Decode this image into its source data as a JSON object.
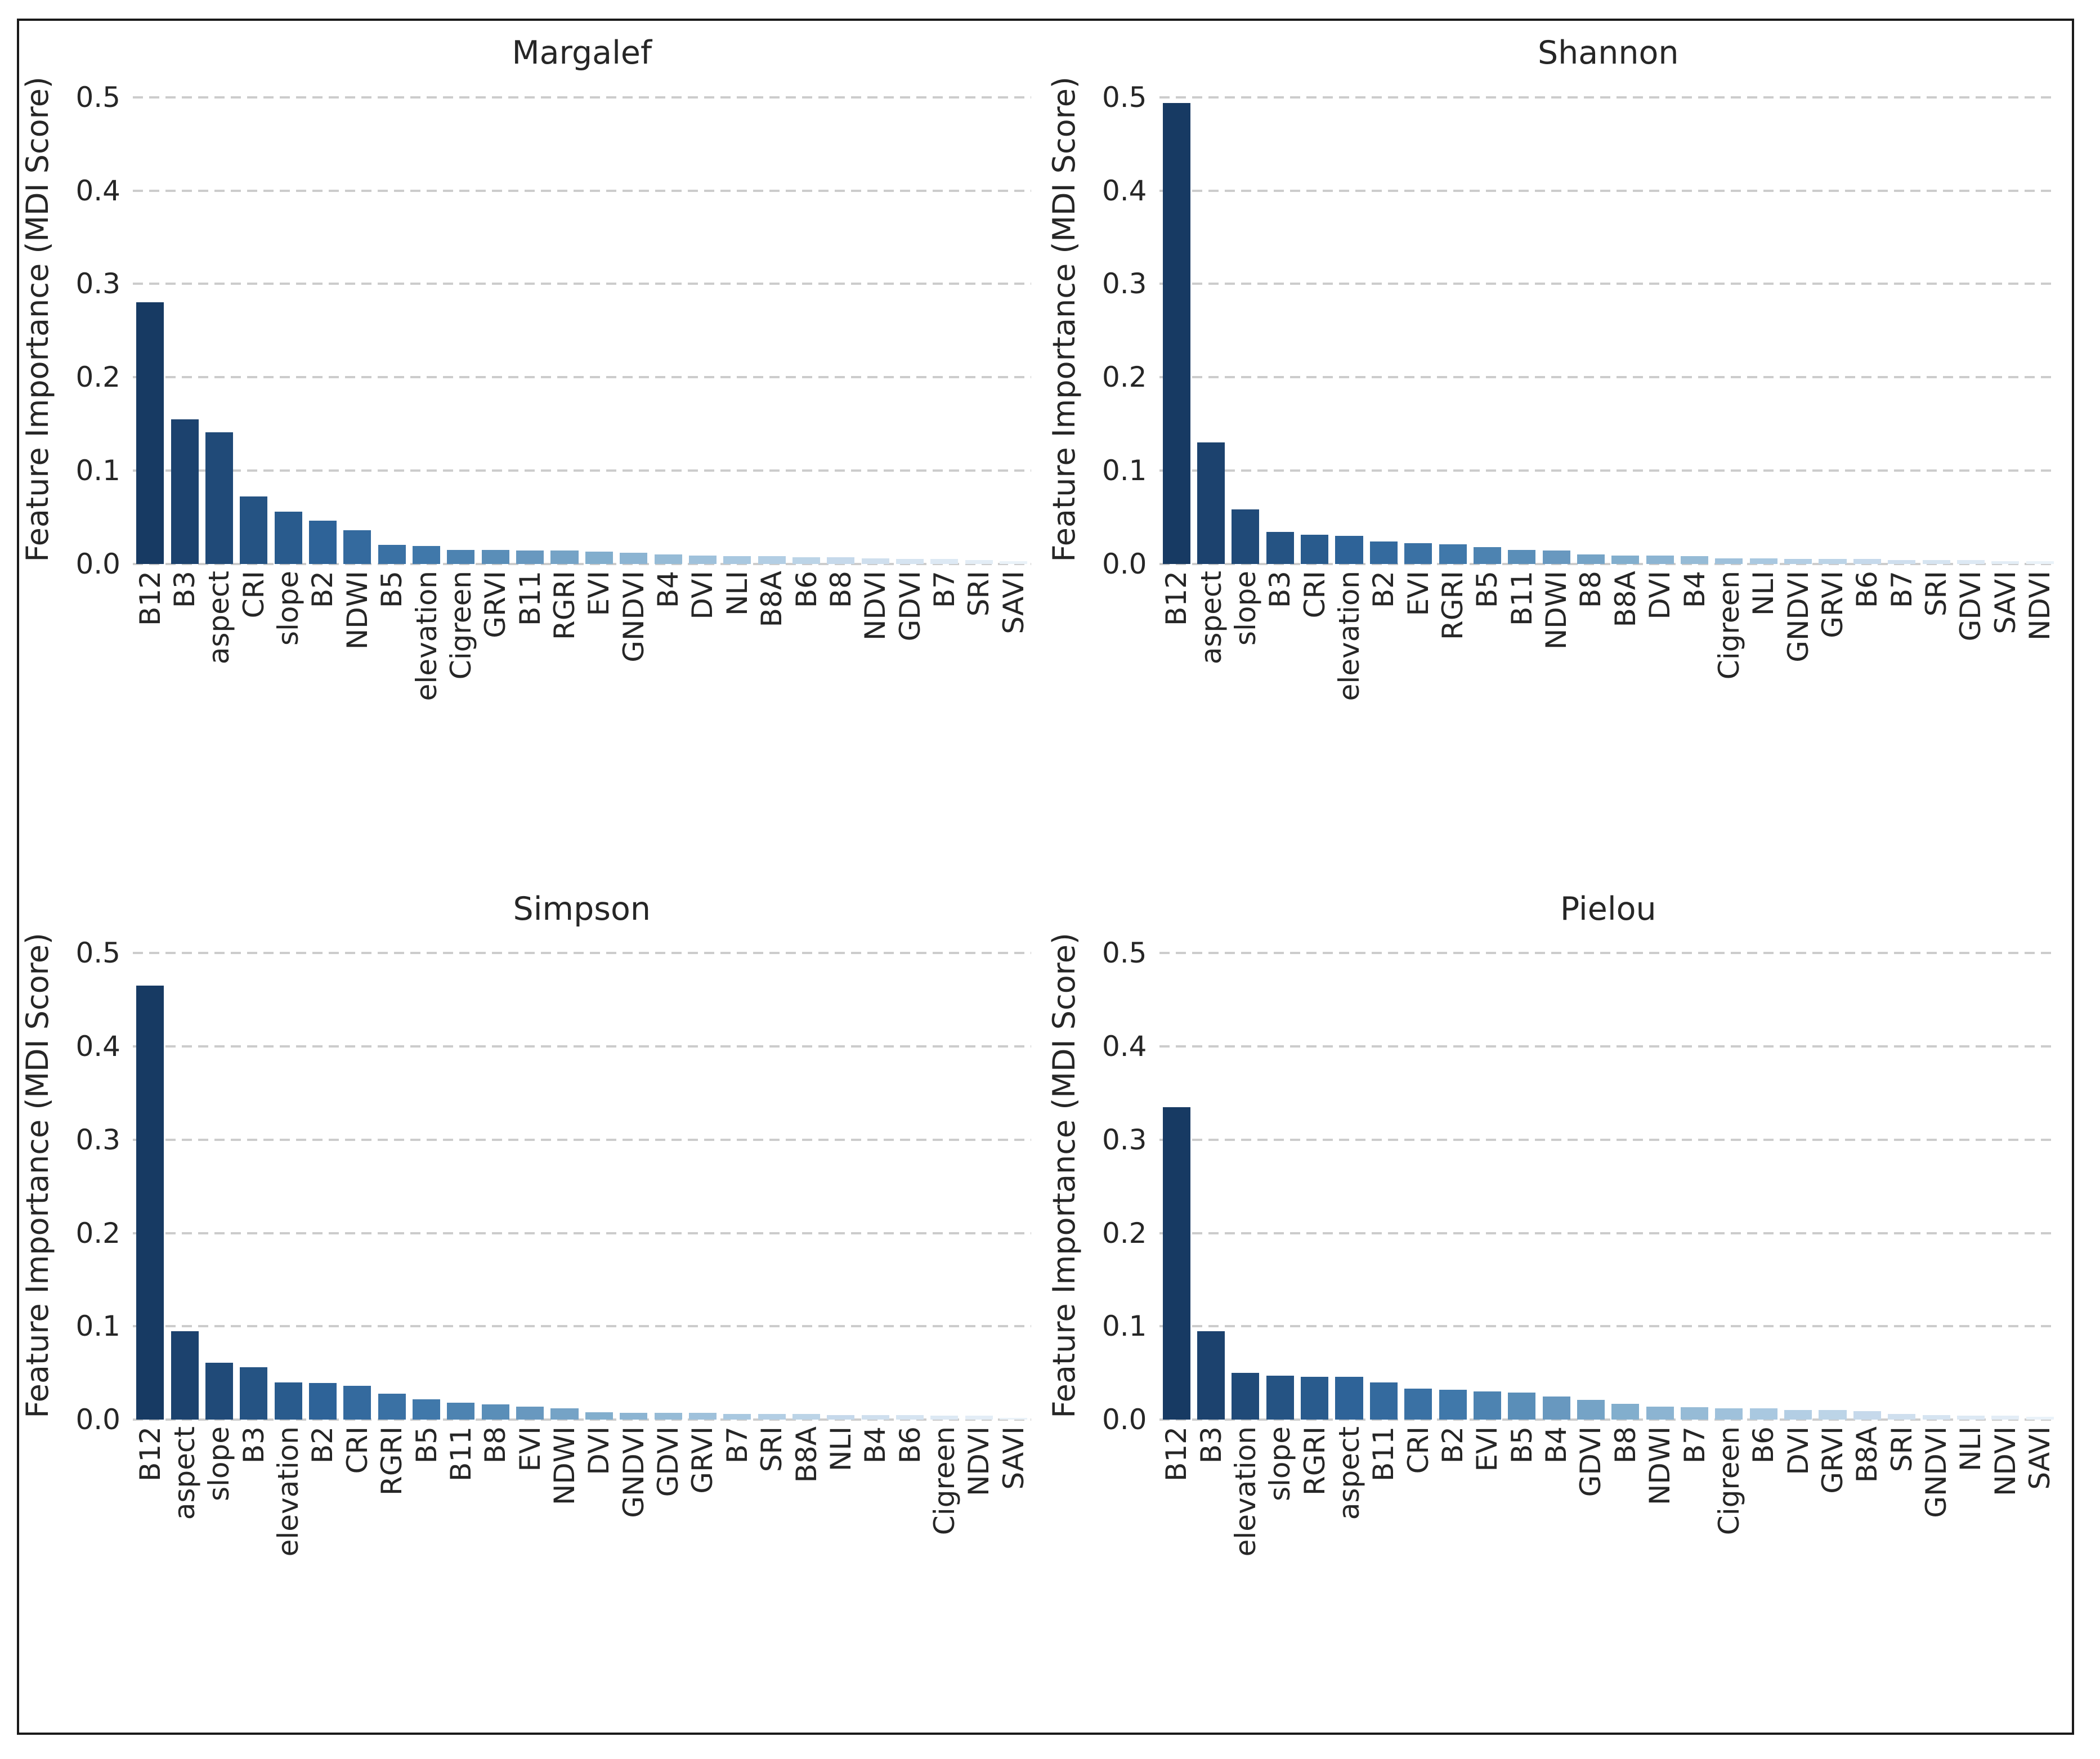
{
  "figure": {
    "background": "#ffffff",
    "border_color": "#1a1a1a",
    "text_color": "#262626",
    "grid_color": "#cccccc"
  },
  "axis": {
    "ylabel": "Feature Importance (MDI Score)",
    "yticks": [
      "0.0",
      "0.1",
      "0.2",
      "0.3",
      "0.4",
      "0.5"
    ],
    "ymax": 0.524,
    "grid": "horizontal-dashed"
  },
  "palette": {
    "name": "blues-dark-to-light",
    "stops": [
      {
        "t": 0.0,
        "color": "#173a63"
      },
      {
        "t": 0.2,
        "color": "#2e6398"
      },
      {
        "t": 0.32,
        "color": "#4078aa"
      },
      {
        "t": 0.52,
        "color": "#82aecd"
      },
      {
        "t": 0.7,
        "color": "#aecbe2"
      },
      {
        "t": 0.84,
        "color": "#cfdfee"
      },
      {
        "t": 1.0,
        "color": "#eaf2f9"
      }
    ]
  },
  "chart_data": [
    {
      "type": "bar",
      "title": "Margalef",
      "ylabel": "Feature Importance (MDI Score)",
      "xlabel": "",
      "ylim": [
        0,
        0.524
      ],
      "grid": "horizontal-dashed",
      "categories": [
        "B12",
        "B3",
        "aspect",
        "CRI",
        "slope",
        "B2",
        "NDWI",
        "B5",
        "elevation",
        "Cigreen",
        "GRVI",
        "B11",
        "RGRI",
        "EVI",
        "GNDVI",
        "B4",
        "DVI",
        "NLI",
        "B8A",
        "B6",
        "B8",
        "NDVI",
        "GDVI",
        "B7",
        "SRI",
        "SAVI"
      ],
      "values": [
        0.28,
        0.155,
        0.141,
        0.072,
        0.056,
        0.046,
        0.036,
        0.02,
        0.019,
        0.015,
        0.015,
        0.014,
        0.014,
        0.013,
        0.012,
        0.01,
        0.009,
        0.008,
        0.008,
        0.007,
        0.007,
        0.006,
        0.005,
        0.005,
        0.004,
        0.003
      ]
    },
    {
      "type": "bar",
      "title": "Shannon",
      "ylabel": "Feature Importance (MDI Score)",
      "xlabel": "",
      "ylim": [
        0,
        0.524
      ],
      "grid": "horizontal-dashed",
      "categories": [
        "B12",
        "aspect",
        "slope",
        "B3",
        "CRI",
        "elevation",
        "B2",
        "EVI",
        "RGRI",
        "B5",
        "B11",
        "NDWI",
        "B8",
        "B8A",
        "DVI",
        "B4",
        "Cigreen",
        "NLI",
        "GNDVI",
        "GRVI",
        "B6",
        "B7",
        "SRI",
        "GDVI",
        "SAVI",
        "NDVI"
      ],
      "values": [
        0.494,
        0.13,
        0.058,
        0.034,
        0.031,
        0.03,
        0.024,
        0.022,
        0.021,
        0.018,
        0.015,
        0.014,
        0.01,
        0.009,
        0.009,
        0.008,
        0.006,
        0.006,
        0.005,
        0.005,
        0.005,
        0.004,
        0.004,
        0.004,
        0.003,
        0.003
      ]
    },
    {
      "type": "bar",
      "title": "Simpson",
      "ylabel": "Feature Importance (MDI Score)",
      "xlabel": "",
      "ylim": [
        0,
        0.524
      ],
      "grid": "horizontal-dashed",
      "categories": [
        "B12",
        "aspect",
        "slope",
        "B3",
        "elevation",
        "B2",
        "CRI",
        "RGRI",
        "B5",
        "B11",
        "B8",
        "EVI",
        "NDWI",
        "DVI",
        "GNDVI",
        "GDVI",
        "GRVI",
        "B7",
        "SRI",
        "B8A",
        "NLI",
        "B4",
        "B6",
        "Cigreen",
        "NDVI",
        "SAVI"
      ],
      "values": [
        0.465,
        0.095,
        0.061,
        0.056,
        0.04,
        0.039,
        0.036,
        0.028,
        0.022,
        0.018,
        0.016,
        0.014,
        0.012,
        0.008,
        0.007,
        0.007,
        0.007,
        0.006,
        0.006,
        0.006,
        0.005,
        0.005,
        0.005,
        0.004,
        0.004,
        0.002
      ]
    },
    {
      "type": "bar",
      "title": "Pielou",
      "ylabel": "Feature Importance (MDI Score)",
      "xlabel": "",
      "ylim": [
        0,
        0.524
      ],
      "grid": "horizontal-dashed",
      "categories": [
        "B12",
        "B3",
        "elevation",
        "slope",
        "RGRI",
        "aspect",
        "B11",
        "CRI",
        "B2",
        "EVI",
        "B5",
        "B4",
        "GDVI",
        "B8",
        "NDWI",
        "B7",
        "Cigreen",
        "B6",
        "DVI",
        "GRVI",
        "B8A",
        "SRI",
        "GNDVI",
        "NLI",
        "NDVI",
        "SAVI"
      ],
      "values": [
        0.335,
        0.095,
        0.05,
        0.047,
        0.046,
        0.046,
        0.04,
        0.033,
        0.032,
        0.03,
        0.029,
        0.025,
        0.021,
        0.017,
        0.014,
        0.013,
        0.012,
        0.012,
        0.01,
        0.01,
        0.009,
        0.006,
        0.005,
        0.004,
        0.004,
        0.003
      ]
    }
  ]
}
